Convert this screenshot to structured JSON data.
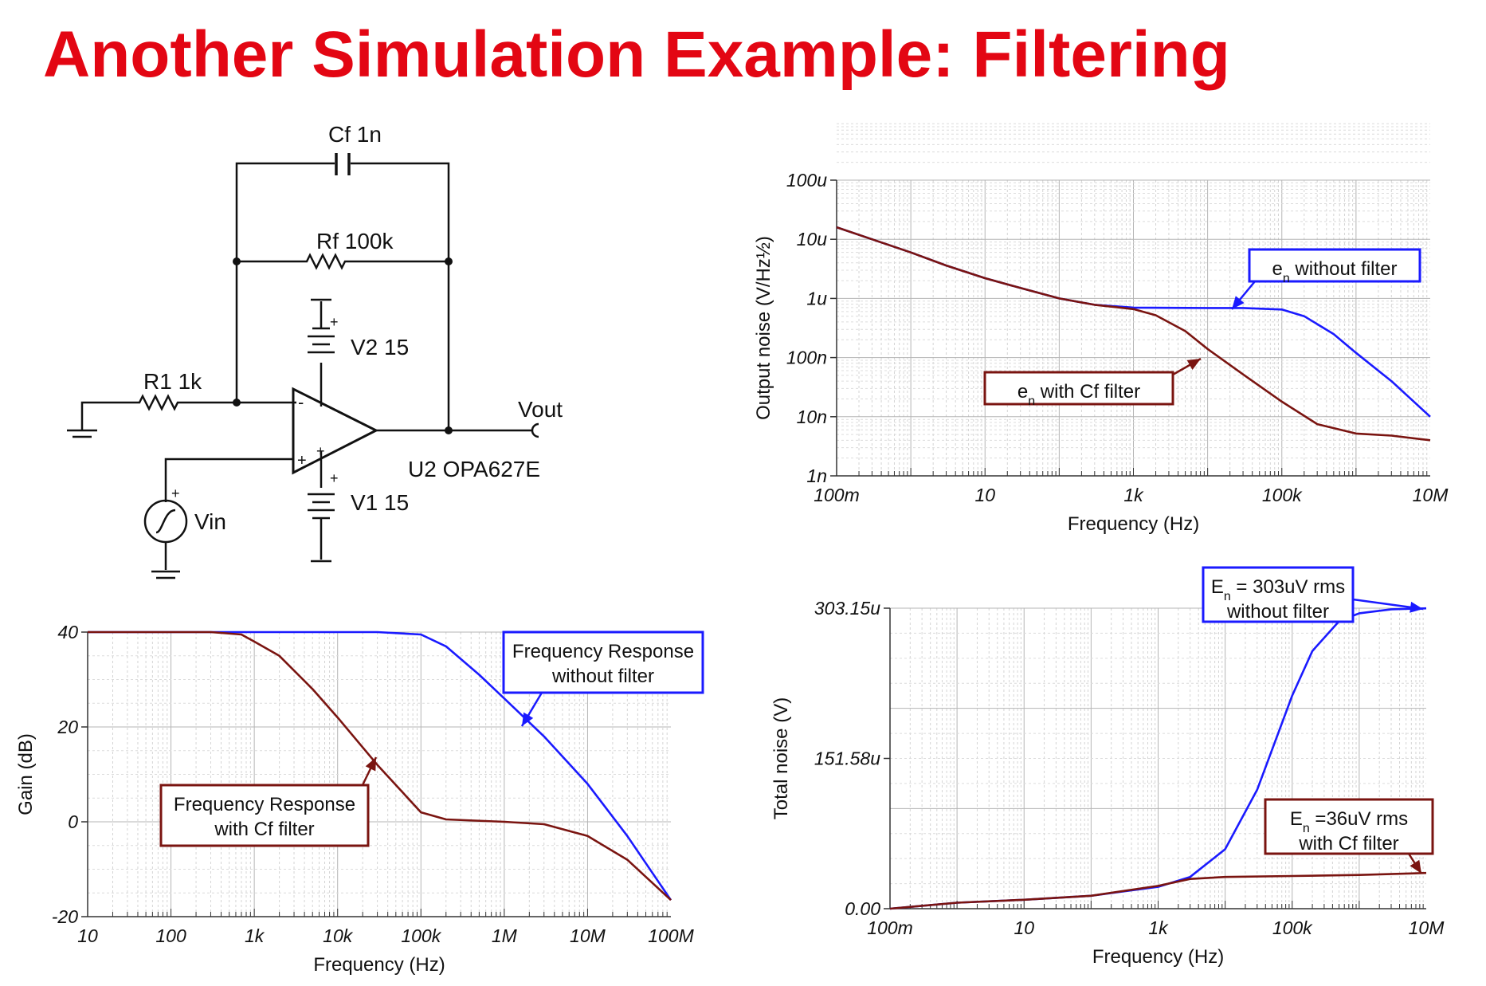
{
  "slide": {
    "title": "Another Simulation Example: Filtering",
    "colors": {
      "title": "#e30613",
      "no_filter": "#1a1aff",
      "cf_filter": "#7a1410"
    }
  },
  "schematic": {
    "labels": {
      "cf": "Cf 1n",
      "rf": "Rf 100k",
      "r1": "R1 1k",
      "v2": "V2 15",
      "v1": "V1 15",
      "vout": "Vout",
      "opamp": "U2 OPA627E",
      "vin": "Vin",
      "minus": "-",
      "plus": "+"
    }
  },
  "chart_data": [
    {
      "id": "noise_density",
      "type": "line",
      "xscale": "log",
      "yscale": "log",
      "xlim": [
        0.1,
        10000000
      ],
      "ylim": [
        1e-09,
        0.0001
      ],
      "xlabel": "Frequency (Hz)",
      "ylabel": "Output noise (V/Hz½)",
      "x_ticks": [
        {
          "v": 0.1,
          "l": "100m"
        },
        {
          "v": 10,
          "l": "10"
        },
        {
          "v": 1000,
          "l": "1k"
        },
        {
          "v": 100000,
          "l": "100k"
        },
        {
          "v": 10000000,
          "l": "10M"
        }
      ],
      "y_ticks": [
        {
          "v": 0.0001,
          "l": "100u"
        },
        {
          "v": 1e-05,
          "l": "10u"
        },
        {
          "v": 1e-06,
          "l": "1u"
        },
        {
          "v": 1e-07,
          "l": "100n"
        },
        {
          "v": 1e-08,
          "l": "10n"
        },
        {
          "v": 1e-09,
          "l": "1n"
        }
      ],
      "series": [
        {
          "key": "no_filter",
          "x": [
            0.1,
            0.3,
            1,
            3,
            10,
            30,
            100,
            300,
            1000,
            10000,
            30000,
            100000,
            200000,
            500000,
            1000000,
            3000000,
            10000000
          ],
          "y": [
            1.6e-05,
            1e-05,
            6e-06,
            3.6e-06,
            2.2e-06,
            1.5e-06,
            1e-06,
            7.8e-07,
            7e-07,
            6.9e-07,
            6.9e-07,
            6.5e-07,
            5e-07,
            2.5e-07,
            1.2e-07,
            4e-08,
            1e-08
          ]
        },
        {
          "key": "cf_filter",
          "x": [
            0.1,
            0.3,
            1,
            3,
            10,
            30,
            100,
            300,
            1000,
            2000,
            5000,
            10000,
            30000,
            100000,
            300000,
            1000000,
            3000000,
            10000000
          ],
          "y": [
            1.6e-05,
            1e-05,
            6e-06,
            3.6e-06,
            2.2e-06,
            1.5e-06,
            1e-06,
            7.8e-07,
            6.6e-07,
            5.2e-07,
            2.8e-07,
            1.4e-07,
            5.2e-08,
            1.8e-08,
            7.5e-09,
            5.2e-09,
            4.8e-09,
            4e-09
          ]
        }
      ],
      "annotations": [
        {
          "series": "no_filter",
          "sym": "e",
          "sub": "n",
          "text": " without filter"
        },
        {
          "series": "cf_filter",
          "sym": "e",
          "sub": "n",
          "text": " with Cf filter"
        }
      ]
    },
    {
      "id": "gain",
      "type": "line",
      "xscale": "log",
      "yscale": "linear",
      "xlim": [
        10,
        100000000
      ],
      "ylim": [
        -20,
        40
      ],
      "xlabel": "Frequency (Hz)",
      "ylabel": "Gain (dB)",
      "x_ticks": [
        {
          "v": 10,
          "l": "10"
        },
        {
          "v": 100,
          "l": "100"
        },
        {
          "v": 1000,
          "l": "1k"
        },
        {
          "v": 10000,
          "l": "10k"
        },
        {
          "v": 100000,
          "l": "100k"
        },
        {
          "v": 1000000,
          "l": "1M"
        },
        {
          "v": 10000000,
          "l": "10M"
        },
        {
          "v": 100000000,
          "l": "100M"
        }
      ],
      "y_ticks": [
        {
          "v": 40,
          "l": "40"
        },
        {
          "v": 20,
          "l": "20"
        },
        {
          "v": 0,
          "l": "0"
        },
        {
          "v": -20,
          "l": "-20"
        }
      ],
      "series": [
        {
          "key": "no_filter",
          "x": [
            10,
            100,
            1000,
            10000,
            30000,
            100000,
            200000,
            500000,
            1000000,
            3000000,
            10000000,
            30000000,
            100000000
          ],
          "y": [
            40,
            40,
            40,
            40,
            40,
            39.5,
            37,
            31,
            26,
            18,
            8,
            -3,
            -16.5
          ]
        },
        {
          "key": "cf_filter",
          "x": [
            10,
            100,
            300,
            700,
            1000,
            2000,
            5000,
            10000,
            30000,
            100000,
            200000,
            1000000,
            3000000,
            10000000,
            30000000,
            100000000
          ],
          "y": [
            40,
            40,
            40,
            39.5,
            38,
            35,
            28,
            22,
            12,
            2,
            0.5,
            0,
            -0.5,
            -3,
            -8,
            -16.5
          ]
        }
      ],
      "annotations": [
        {
          "series": "no_filter",
          "line1": "Frequency Response",
          "line2": "without filter"
        },
        {
          "series": "cf_filter",
          "line1": "Frequency Response",
          "line2": "with Cf filter"
        }
      ]
    },
    {
      "id": "total_noise",
      "type": "line",
      "xscale": "log",
      "yscale": "linear",
      "xlim": [
        0.1,
        10000000
      ],
      "ylim": [
        0,
        0.00030315
      ],
      "xlabel": "Frequency (Hz)",
      "ylabel": "Total noise (V)",
      "x_ticks": [
        {
          "v": 0.1,
          "l": "100m"
        },
        {
          "v": 10,
          "l": "10"
        },
        {
          "v": 1000,
          "l": "1k"
        },
        {
          "v": 100000,
          "l": "100k"
        },
        {
          "v": 10000000,
          "l": "10M"
        }
      ],
      "y_ticks": [
        {
          "v": 0.00030315,
          "l": "303.15u"
        },
        {
          "v": 0.00015158,
          "l": "151.58u"
        },
        {
          "v": 0,
          "l": "0.00"
        }
      ],
      "series": [
        {
          "key": "no_filter",
          "x": [
            0.1,
            1,
            10,
            100,
            1000,
            3000,
            10000,
            30000,
            100000,
            200000,
            500000,
            1000000,
            3000000,
            10000000
          ],
          "y": [
            0,
            6e-06,
            9e-06,
            1.3e-05,
            2.2e-05,
            3.2e-05,
            6e-05,
            0.00012,
            0.000215,
            0.00026,
            0.00029,
            0.000298,
            0.000302,
            0.000303
          ]
        },
        {
          "key": "cf_filter",
          "x": [
            0.1,
            1,
            10,
            100,
            1000,
            3000,
            10000,
            100000,
            1000000,
            10000000
          ],
          "y": [
            0,
            6e-06,
            9e-06,
            1.3e-05,
            2.3e-05,
            3e-05,
            3.2e-05,
            3.3e-05,
            3.4e-05,
            3.6e-05
          ]
        }
      ],
      "annotations": [
        {
          "series": "no_filter",
          "sym": "E",
          "sub": "n",
          "line1": " = 303uV rms",
          "line2": "without filter"
        },
        {
          "series": "cf_filter",
          "sym": "E",
          "sub": "n",
          "line1": " =36uV rms",
          "line2": "with Cf filter"
        }
      ]
    }
  ]
}
